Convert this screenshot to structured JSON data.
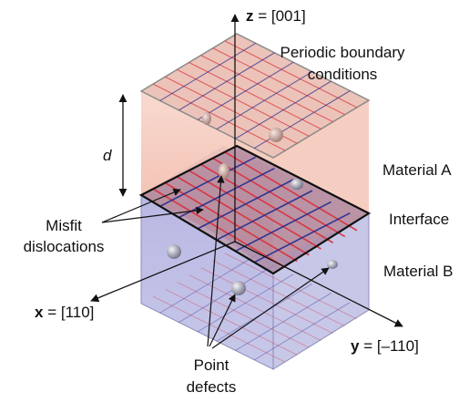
{
  "axes": {
    "z_bold": "z",
    "z_rest": " = [001]",
    "x_bold": "x",
    "x_rest": " = [110]",
    "y_bold": "y",
    "y_rest": " = [–110]"
  },
  "labels": {
    "periodic_line1": "Periodic boundary",
    "periodic_line2": "conditions",
    "d": "d",
    "material_a": "Material A",
    "interface": "Interface",
    "material_b": "Material B",
    "misfit_line1": "Misfit",
    "misfit_line2": "dislocations",
    "point_line1": "Point",
    "point_line2": "defects"
  },
  "colors": {
    "material_a": "#d9333f",
    "material_b": "#4a4f9c",
    "material_a_fill": "#f2b8a8",
    "material_b_fill": "#b4b4df",
    "dislocation_red": "#d9333f",
    "dislocation_blue": "#2b2f8f"
  }
}
